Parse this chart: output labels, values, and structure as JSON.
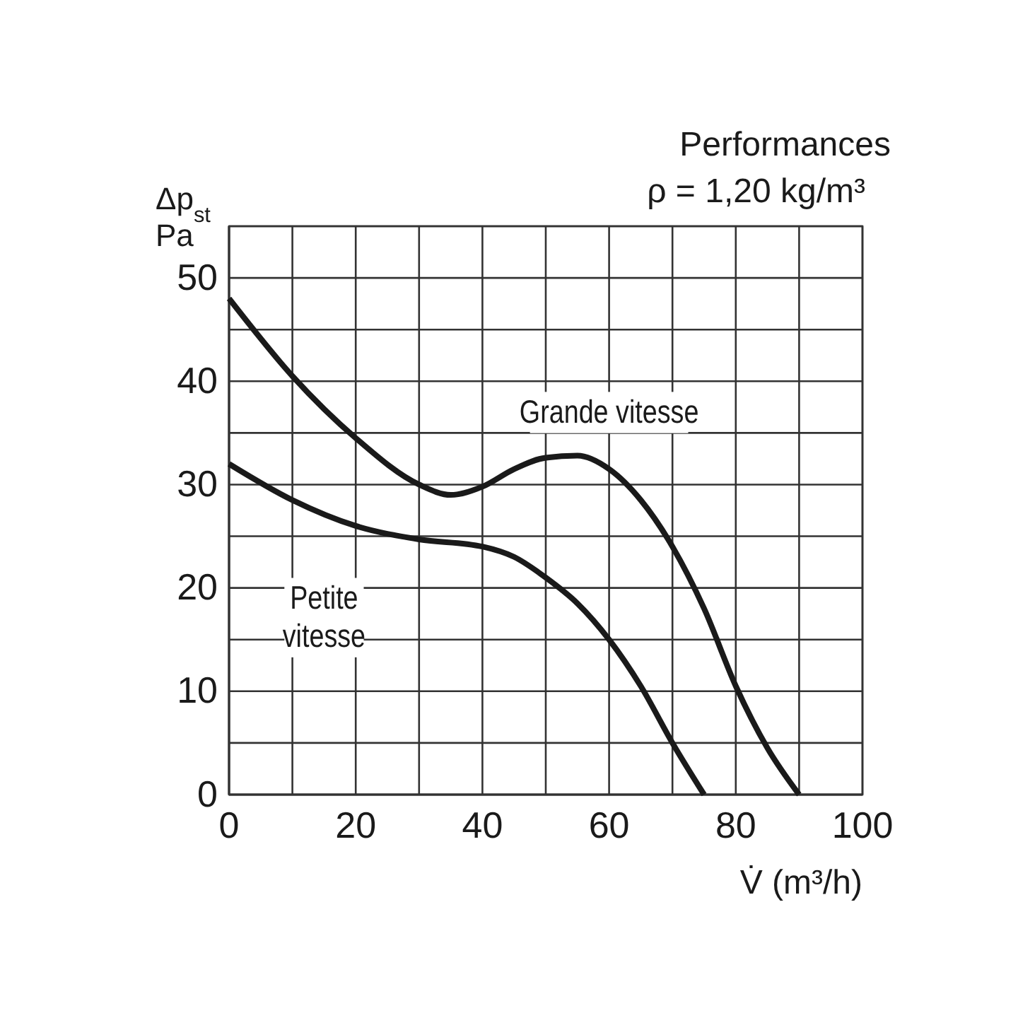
{
  "chart_data": {
    "type": "line",
    "title": "Performances",
    "subtitle": "ρ = 1,20 kg/m³",
    "xlabel": "V̇ (m³/h)",
    "ylabel": "Δp$_{st}$\nPa",
    "xlim": [
      0,
      100
    ],
    "ylim": [
      0,
      55
    ],
    "xticks": [
      0,
      {
        "value": 10,
        "label": null
      },
      20,
      {
        "value": 30,
        "label": null
      },
      40,
      {
        "value": 50,
        "label": null
      },
      60,
      {
        "value": 70,
        "label": null
      },
      80,
      {
        "value": 90,
        "label": null
      },
      100
    ],
    "yticks": [
      0,
      {
        "value": 5,
        "label": null
      },
      10,
      {
        "value": 15,
        "label": null
      },
      20,
      {
        "value": 25,
        "label": null
      },
      30,
      {
        "value": 35,
        "label": null
      },
      40,
      {
        "value": 45,
        "label": null
      },
      50,
      {
        "value": 55,
        "label": null
      }
    ],
    "grid": true,
    "marker": "none",
    "line_style": "solid",
    "series": [
      {
        "name": "Grande vitesse",
        "color": "#1a1a1a",
        "x": [
          0,
          10,
          20,
          30,
          35,
          40,
          45,
          50,
          55,
          60,
          65,
          70,
          75,
          80,
          85,
          90
        ],
        "values": [
          48,
          40.5,
          34.5,
          30,
          29,
          29.8,
          31.5,
          32.6,
          32.8,
          31.5,
          28.5,
          24,
          18,
          10.5,
          4.5,
          0
        ]
      },
      {
        "name": "Petite\nvitesse",
        "color": "#1a1a1a",
        "x": [
          0,
          10,
          20,
          30,
          40,
          45,
          50,
          55,
          60,
          65,
          70,
          75
        ],
        "values": [
          32,
          28.5,
          26,
          24.7,
          24,
          23,
          21,
          18.5,
          15,
          10.5,
          5,
          0
        ]
      }
    ]
  }
}
